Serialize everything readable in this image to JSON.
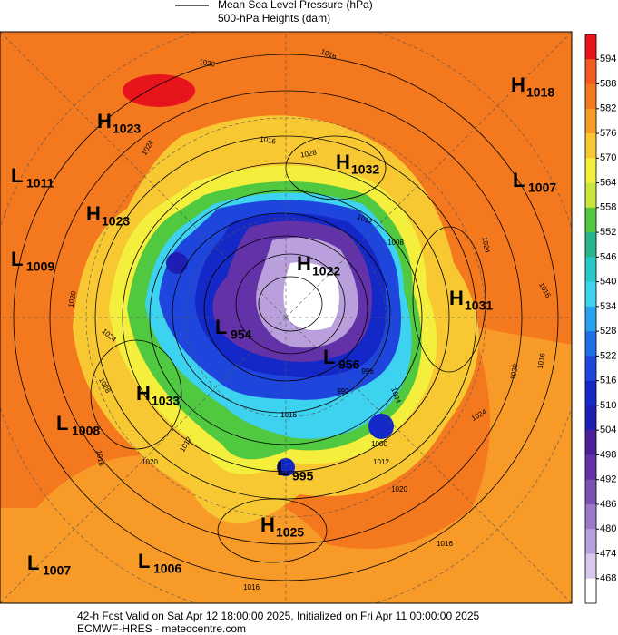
{
  "header": {
    "line1": "Mean Sea Level Pressure (hPa)",
    "line2": "500-hPa Heights (dam)"
  },
  "colorbar": {
    "labels": [
      "594",
      "588",
      "582",
      "576",
      "570",
      "564",
      "558",
      "552",
      "546",
      "540",
      "534",
      "528",
      "522",
      "516",
      "510",
      "504",
      "498",
      "492",
      "486",
      "480",
      "474",
      "468"
    ],
    "colors": [
      "#e8141c",
      "#f25a1e",
      "#f4781e",
      "#f89a28",
      "#f8c832",
      "#f4ee3c",
      "#c8e63c",
      "#50c840",
      "#28b48c",
      "#28c8c8",
      "#3cd2f0",
      "#28a0f0",
      "#1e6ee6",
      "#1e46dc",
      "#1428c8",
      "#1e1eb4",
      "#4b1e9c",
      "#6432a8",
      "#7d50b4",
      "#9b78c8",
      "#b9a0dc",
      "#d7c8ec",
      "#ffffff"
    ]
  },
  "centers": [
    {
      "kind": "H",
      "value": "1018"
    },
    {
      "kind": "H",
      "value": "1023"
    },
    {
      "kind": "H",
      "value": "1032"
    },
    {
      "kind": "L",
      "value": "1011"
    },
    {
      "kind": "L",
      "value": "1007"
    },
    {
      "kind": "H",
      "value": "1023"
    },
    {
      "kind": "L",
      "value": "1009"
    },
    {
      "kind": "H",
      "value": "1022"
    },
    {
      "kind": "H",
      "value": "1031"
    },
    {
      "kind": "L",
      "value": "954"
    },
    {
      "kind": "L",
      "value": "956"
    },
    {
      "kind": "H",
      "value": "1033"
    },
    {
      "kind": "L",
      "value": "1008"
    },
    {
      "kind": "L",
      "value": "995"
    },
    {
      "kind": "H",
      "value": "1025"
    },
    {
      "kind": "L",
      "value": "1007"
    },
    {
      "kind": "L",
      "value": "1006"
    }
  ],
  "contour_labels": [
    "1020",
    "1016",
    "1024",
    "1016",
    "1028",
    "1012",
    "1008",
    "1020",
    "1024",
    "1028",
    "1016",
    "1020",
    "1012",
    "1016",
    "1020",
    "1024",
    "1020",
    "1016",
    "1016",
    "1016",
    "1024",
    "1016",
    "992",
    "1000",
    "1004",
    "996",
    "1012"
  ],
  "footer": {
    "line1": "42-h Fcst Valid on Sat Apr 12 18:00:00 2025, Initialized on Fri Apr 11 00:00:00 2025",
    "line2": "ECMWF-HRES  - meteocentre.com"
  }
}
